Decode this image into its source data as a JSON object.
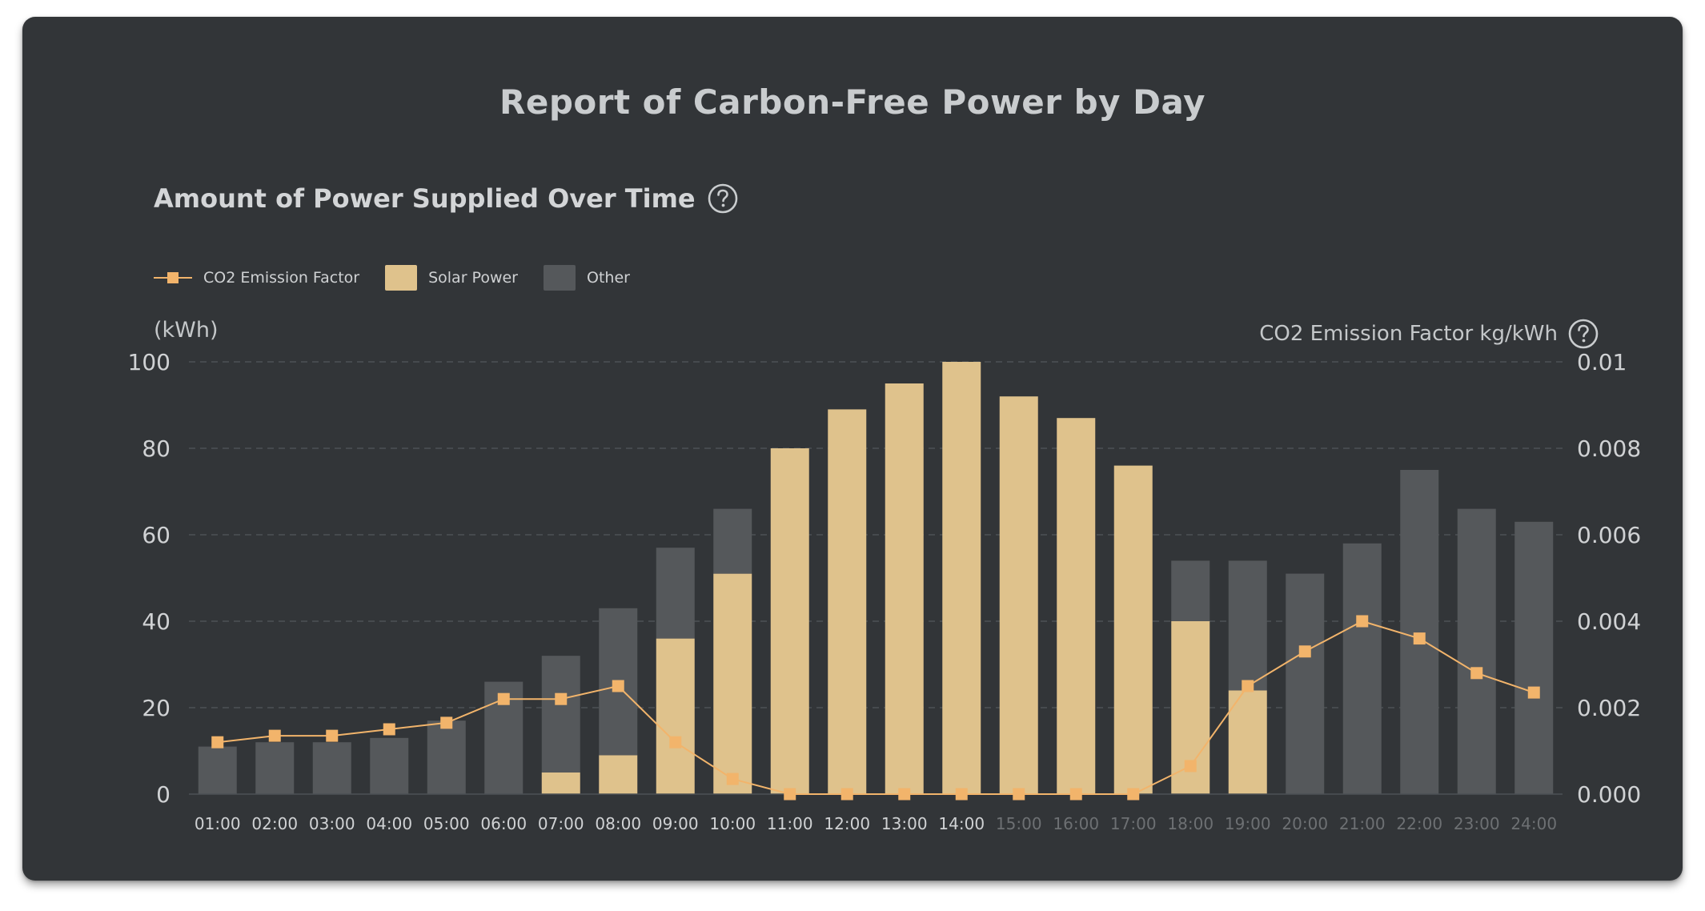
{
  "title": "Report of Carbon-Free Power by Day",
  "section_title": "Amount of Power Supplied Over Time",
  "colors": {
    "card_bg": "#323538",
    "solar": "#dfc28c",
    "other": "#55585b",
    "co2_line": "#f2b46b",
    "grid": "#4d5155",
    "tick_text": "#d0d2d4",
    "tick_text_dim": "#6d7073"
  },
  "icons": {
    "section_help": "question-circle-icon",
    "axis_help": "question-circle-icon"
  },
  "legend": [
    {
      "label": "CO2 Emission Factor",
      "kind": "line-marker",
      "color": "#f2b46b"
    },
    {
      "label": "Solar Power",
      "kind": "swatch",
      "color": "#dfc28c"
    },
    {
      "label": "Other",
      "kind": "swatch",
      "color": "#55585b"
    }
  ],
  "chart_data": {
    "type": "bar",
    "stacked": true,
    "left_axis_unit": "(kWh)",
    "right_axis_label": "CO2 Emission Factor kg/kWh",
    "ylim": [
      0,
      100
    ],
    "yticks": [
      "0",
      "20",
      "40",
      "60",
      "80",
      "100"
    ],
    "ylim_right": [
      0,
      0.01
    ],
    "yticks_right": [
      "0.000",
      "0.002",
      "0.004",
      "0.006",
      "0.008",
      "0.01"
    ],
    "grid": true,
    "legend_position": "top-left",
    "categories": [
      "01:00",
      "02:00",
      "03:00",
      "04:00",
      "05:00",
      "06:00",
      "07:00",
      "08:00",
      "09:00",
      "10:00",
      "11:00",
      "12:00",
      "13:00",
      "14:00",
      "15:00",
      "16:00",
      "17:00",
      "18:00",
      "19:00",
      "20:00",
      "21:00",
      "22:00",
      "23:00",
      "24:00"
    ],
    "dimmed_categories": [
      "15:00",
      "16:00",
      "17:00",
      "18:00",
      "19:00",
      "20:00",
      "21:00",
      "22:00",
      "23:00",
      "24:00"
    ],
    "series": [
      {
        "name": "Solar Power",
        "type": "bar",
        "axis": "left",
        "values": [
          0,
          0,
          0,
          0,
          0,
          0,
          5,
          9,
          36,
          51,
          80,
          89,
          95,
          100,
          92,
          87,
          76,
          40,
          24,
          0,
          0,
          0,
          0,
          0
        ]
      },
      {
        "name": "Other",
        "type": "bar",
        "axis": "left",
        "values": [
          11,
          12,
          12,
          13,
          17,
          26,
          27,
          34,
          21,
          15,
          0,
          0,
          0,
          0,
          0,
          0,
          0,
          14,
          30,
          51,
          58,
          75,
          66,
          63
        ]
      },
      {
        "name": "CO2 Emission Factor",
        "type": "line",
        "axis": "right",
        "values": [
          0.0012,
          0.00135,
          0.00135,
          0.0015,
          0.00165,
          0.0022,
          0.0022,
          0.0025,
          0.0012,
          0.00035,
          0,
          0,
          0,
          0,
          0,
          0,
          0,
          0.00065,
          0.0025,
          0.0033,
          0.004,
          0.0036,
          0.0028,
          0.00235
        ]
      }
    ]
  }
}
